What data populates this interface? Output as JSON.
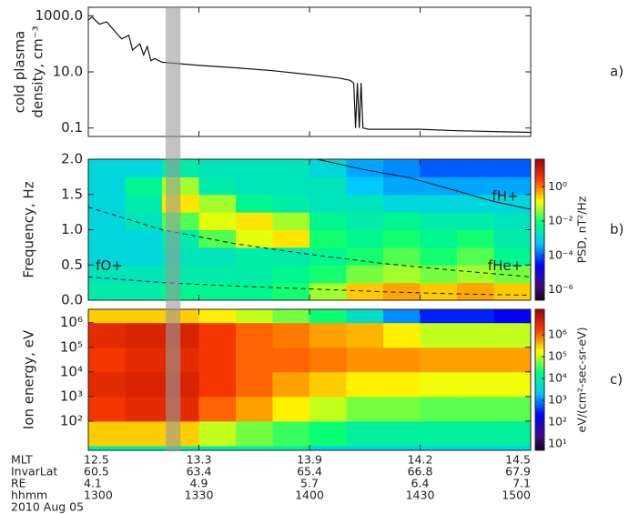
{
  "chart_data": [
    {
      "type": "line",
      "ylabel": [
        "cold plasma",
        "density, cm⁻³"
      ],
      "panel_label": "a)",
      "log_y": true,
      "color": "#111111",
      "xlim": [
        780,
        900
      ],
      "ylim": [
        0.05,
        2000
      ],
      "yticks": [
        {
          "value": 1000,
          "label": "1000.0"
        },
        {
          "value": 10,
          "label": "10.0"
        },
        0.1
      ],
      "x": [
        780,
        781,
        783,
        785,
        787,
        789,
        791,
        792,
        794,
        795,
        796,
        797,
        798,
        800,
        810,
        820,
        830,
        840,
        848,
        851,
        852,
        852.5,
        853,
        853.5,
        854,
        854.5,
        856,
        870,
        880,
        890,
        900
      ],
      "values": [
        700,
        900,
        500,
        600,
        300,
        150,
        200,
        60,
        100,
        40,
        80,
        25,
        30,
        22,
        17,
        14,
        11,
        8,
        6,
        5,
        4,
        0.1,
        4,
        0.1,
        4,
        0.1,
        0.09,
        0.09,
        0.08,
        0.075,
        0.07
      ]
    },
    {
      "type": "heatmap",
      "ylabel": "Frequency, Hz",
      "panel_label": "b)",
      "log_y": false,
      "colorbar_label": "PSD, nT²/Hz",
      "xlim": [
        780,
        900
      ],
      "ylim": [
        0,
        2
      ],
      "yticks": [
        {
          "value": 0,
          "label": "0.0"
        },
        0.5,
        {
          "value": 1,
          "label": "1.0"
        },
        1.5,
        {
          "value": 2,
          "label": "2.0"
        }
      ],
      "clim": [
        2.5e-07,
        40
      ],
      "cticks": [
        {
          "value": 1,
          "label": "10⁰"
        },
        {
          "value": 0.01,
          "label": "10⁻²"
        },
        {
          "value": 0.0001,
          "label": "10⁻⁴"
        },
        {
          "value": 1e-06,
          "label": "10⁻⁶"
        }
      ],
      "x_bins": [
        780,
        790,
        800,
        810,
        820,
        830,
        840,
        850,
        860,
        870,
        880,
        890,
        900
      ],
      "y_bins": [
        0,
        0.25,
        0.5,
        0.75,
        1,
        1.25,
        1.5,
        1.75,
        2
      ],
      "z": [
        [
          0.003,
          0.003,
          0.005,
          0.005,
          0.005,
          0.01,
          0.05,
          0.3,
          0.5,
          0.3,
          0.5,
          0.3
        ],
        [
          0.002,
          0.002,
          0.003,
          0.003,
          0.003,
          0.005,
          0.01,
          0.03,
          0.05,
          0.03,
          0.05,
          0.03
        ],
        [
          0.001,
          0.001,
          0.002,
          0.002,
          0.003,
          0.003,
          0.005,
          0.01,
          0.02,
          0.01,
          0.02,
          0.005
        ],
        [
          0.001,
          0.001,
          0.003,
          0.02,
          0.1,
          0.2,
          0.01,
          0.005,
          0.01,
          0.005,
          0.01,
          0.003
        ],
        [
          0.001,
          0.002,
          0.02,
          0.1,
          0.2,
          0.05,
          0.005,
          0.003,
          0.005,
          0.003,
          0.003,
          0.002
        ],
        [
          0.001,
          0.003,
          0.2,
          0.05,
          0.005,
          0.003,
          0.002,
          0.002,
          0.001,
          0.001,
          0.001,
          0.001
        ],
        [
          0.001,
          0.005,
          0.05,
          0.003,
          0.002,
          0.002,
          0.002,
          0.0005,
          0.0003,
          0.0003,
          0.0003,
          0.0003
        ],
        [
          0.001,
          0.001,
          0.003,
          0.002,
          0.002,
          0.002,
          0.001,
          0.0003,
          0.0002,
          0.0001,
          0.0001,
          0.0001
        ]
      ],
      "lines": [
        {
          "name": "fH+",
          "dashed": false,
          "x": [
            842,
            855,
            867,
            880,
            890,
            900
          ],
          "values": [
            2,
            1.85,
            1.74,
            1.55,
            1.4,
            1.29
          ]
        },
        {
          "name": "fHe+",
          "dashed": true,
          "x": [
            780,
            800,
            820,
            840,
            860,
            880,
            900
          ],
          "values": [
            1.32,
            1,
            0.8,
            0.65,
            0.52,
            0.42,
            0.33
          ]
        },
        {
          "name": "fO+",
          "dashed": true,
          "x": [
            780,
            800,
            820,
            840,
            860,
            880,
            900
          ],
          "values": [
            0.33,
            0.25,
            0.2,
            0.16,
            0.12,
            0.09,
            0.07
          ]
        }
      ]
    },
    {
      "type": "heatmap",
      "ylabel": "Ion energy, eV",
      "panel_label": "c)",
      "log_y": true,
      "colorbar_label": "eV/(cm²-sec-sr-eV)",
      "xlim": [
        780,
        900
      ],
      "ylim": [
        6.5,
        3500000
      ],
      "yticks": [
        {
          "value": 100,
          "label": "10²"
        },
        {
          "value": 1000,
          "label": "10³"
        },
        {
          "value": 10000,
          "label": "10⁴"
        },
        {
          "value": 100000,
          "label": "10⁵"
        },
        {
          "value": 1000000,
          "label": "10⁶"
        }
      ],
      "clim": [
        5,
        15000000
      ],
      "cticks": [
        {
          "value": 10,
          "label": "10¹"
        },
        {
          "value": 100,
          "label": "10²"
        },
        {
          "value": 1000,
          "label": "10³"
        },
        {
          "value": 10000,
          "label": "10⁴"
        },
        {
          "value": 100000,
          "label": "10⁵"
        },
        {
          "value": 1000000,
          "label": "10⁶"
        }
      ],
      "x_bins": [
        780,
        790,
        800,
        810,
        820,
        830,
        840,
        850,
        860,
        870,
        880,
        890,
        900
      ],
      "y_bins": [
        6.5,
        10,
        100,
        1000,
        10000,
        100000,
        1000000,
        3500000
      ],
      "z": [
        [
          10000,
          10000,
          10000,
          10000,
          10000,
          10000,
          3000,
          3000,
          3000,
          3000,
          3000,
          3000
        ],
        [
          300000,
          300000,
          300000,
          100000,
          50000,
          30000,
          20000,
          10000,
          10000,
          10000,
          10000,
          10000
        ],
        [
          2000000,
          3000000,
          3000000,
          1000000,
          500000,
          200000,
          100000,
          50000,
          50000,
          40000,
          40000,
          40000
        ],
        [
          3000000,
          4000000,
          4000000,
          2000000,
          1000000,
          500000,
          300000,
          200000,
          200000,
          150000,
          150000,
          150000
        ],
        [
          2000000,
          3000000,
          3000000,
          2000000,
          1000000,
          1000000,
          800000,
          600000,
          600000,
          500000,
          500000,
          500000
        ],
        [
          3000000,
          4000000,
          4000000,
          2000000,
          1000000,
          800000,
          500000,
          400000,
          200000,
          100000,
          100000,
          100000
        ],
        [
          300000,
          300000,
          300000,
          200000,
          100000,
          50000,
          20000,
          5000,
          1000,
          300,
          300,
          200
        ]
      ],
      "lines": []
    }
  ],
  "shared": {
    "xticks": [
      {
        "value": 780,
        "label": "1300"
      },
      {
        "value": 810,
        "label": "1330"
      },
      {
        "value": 840,
        "label": "1400"
      },
      {
        "value": 870,
        "label": "1430"
      },
      {
        "value": 900,
        "label": "1500"
      }
    ],
    "xtick_title": "hhmm",
    "xtick_rows": [
      {
        "name": "MLT",
        "labels": [
          "12.5",
          "13.3",
          "13.9",
          "14.2",
          "14.5"
        ]
      },
      {
        "name": "InvarLat",
        "labels": [
          "60.5",
          "63.4",
          "65.4",
          "66.8",
          "67.9"
        ]
      },
      {
        "name": "RE",
        "labels": [
          "4.1",
          "4.9",
          "5.7",
          "6.4",
          "7.1"
        ]
      }
    ],
    "date": "2010 Aug 05",
    "highlight_span": [
      801,
      805
    ]
  }
}
